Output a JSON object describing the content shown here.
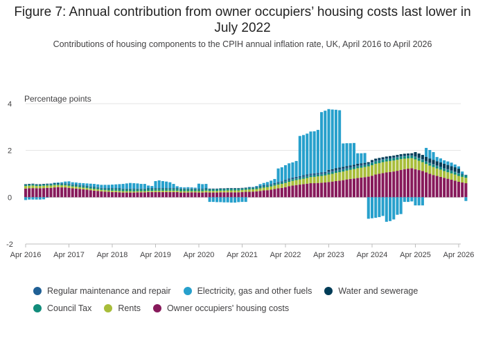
{
  "title": "Figure 7: Annual contribution from owner occupiers’ housing costs last lower in July 2022",
  "subtitle": "Contributions of housing components to the CPIH annual inflation rate, UK, April 2016 to April 2026",
  "chart_data": {
    "type": "bar",
    "stacked": true,
    "ylabel": "Percentage points",
    "ylim": [
      -2,
      4
    ],
    "yticks": [
      -2,
      0,
      2,
      4
    ],
    "xticks": [
      "Apr 2016",
      "Apr 2017",
      "Apr 2018",
      "Apr 2019",
      "Apr 2020",
      "Apr 2021",
      "Apr 2022",
      "Apr 2023",
      "Apr 2024",
      "Apr 2025",
      "Apr 2026"
    ],
    "grid": true,
    "legend_position": "bottom",
    "start_month": "2016-04",
    "series": [
      {
        "name": "Owner occupiers' housing costs",
        "color": "#871a5b",
        "values": [
          0.37,
          0.38,
          0.39,
          0.38,
          0.38,
          0.39,
          0.4,
          0.4,
          0.42,
          0.43,
          0.42,
          0.42,
          0.4,
          0.38,
          0.37,
          0.35,
          0.34,
          0.32,
          0.3,
          0.28,
          0.27,
          0.25,
          0.24,
          0.23,
          0.22,
          0.22,
          0.21,
          0.2,
          0.2,
          0.2,
          0.2,
          0.21,
          0.21,
          0.21,
          0.22,
          0.22,
          0.22,
          0.22,
          0.22,
          0.22,
          0.22,
          0.22,
          0.22,
          0.2,
          0.2,
          0.2,
          0.21,
          0.21,
          0.2,
          0.2,
          0.21,
          0.2,
          0.2,
          0.2,
          0.21,
          0.21,
          0.21,
          0.21,
          0.21,
          0.21,
          0.22,
          0.23,
          0.23,
          0.24,
          0.25,
          0.27,
          0.29,
          0.3,
          0.32,
          0.35,
          0.38,
          0.4,
          0.43,
          0.47,
          0.5,
          0.52,
          0.54,
          0.56,
          0.58,
          0.6,
          0.6,
          0.61,
          0.62,
          0.63,
          0.65,
          0.67,
          0.69,
          0.71,
          0.73,
          0.76,
          0.78,
          0.8,
          0.82,
          0.84,
          0.86,
          0.88,
          0.92,
          0.97,
          1.0,
          1.03,
          1.06,
          1.08,
          1.1,
          1.13,
          1.17,
          1.2,
          1.22,
          1.24,
          1.2,
          1.16,
          1.12,
          1.06,
          1.0,
          0.95,
          0.91,
          0.87,
          0.83,
          0.79,
          0.75,
          0.71,
          0.66,
          0.63,
          0.6
        ]
      },
      {
        "name": "Rents",
        "color": "#a8bd3a",
        "values": [
          0.11,
          0.11,
          0.11,
          0.1,
          0.1,
          0.1,
          0.1,
          0.1,
          0.1,
          0.09,
          0.09,
          0.09,
          0.09,
          0.08,
          0.08,
          0.08,
          0.07,
          0.07,
          0.07,
          0.07,
          0.07,
          0.06,
          0.06,
          0.06,
          0.06,
          0.06,
          0.06,
          0.06,
          0.06,
          0.06,
          0.05,
          0.05,
          0.05,
          0.05,
          0.05,
          0.05,
          0.06,
          0.06,
          0.06,
          0.06,
          0.06,
          0.06,
          0.06,
          0.06,
          0.06,
          0.06,
          0.05,
          0.05,
          0.06,
          0.06,
          0.07,
          0.07,
          0.07,
          0.07,
          0.07,
          0.07,
          0.08,
          0.08,
          0.08,
          0.08,
          0.09,
          0.09,
          0.1,
          0.1,
          0.1,
          0.11,
          0.12,
          0.13,
          0.14,
          0.15,
          0.16,
          0.17,
          0.18,
          0.19,
          0.2,
          0.21,
          0.22,
          0.23,
          0.24,
          0.26,
          0.27,
          0.28,
          0.29,
          0.3,
          0.32,
          0.33,
          0.35,
          0.36,
          0.37,
          0.38,
          0.39,
          0.4,
          0.42,
          0.42,
          0.43,
          0.44,
          0.45,
          0.46,
          0.46,
          0.47,
          0.47,
          0.47,
          0.47,
          0.47,
          0.46,
          0.45,
          0.44,
          0.43,
          0.42,
          0.4,
          0.38,
          0.36,
          0.35,
          0.34,
          0.32,
          0.31,
          0.29,
          0.28,
          0.27,
          0.26,
          0.25,
          0.24,
          0.23
        ]
      },
      {
        "name": "Council Tax",
        "color": "#118c7b",
        "values": [
          0.05,
          0.05,
          0.05,
          0.05,
          0.05,
          0.05,
          0.05,
          0.05,
          0.05,
          0.05,
          0.05,
          0.05,
          0.06,
          0.06,
          0.06,
          0.06,
          0.06,
          0.06,
          0.06,
          0.06,
          0.06,
          0.06,
          0.06,
          0.06,
          0.08,
          0.08,
          0.08,
          0.08,
          0.08,
          0.08,
          0.08,
          0.08,
          0.08,
          0.08,
          0.08,
          0.08,
          0.08,
          0.08,
          0.08,
          0.08,
          0.08,
          0.08,
          0.08,
          0.08,
          0.08,
          0.08,
          0.08,
          0.08,
          0.07,
          0.07,
          0.07,
          0.07,
          0.07,
          0.07,
          0.07,
          0.07,
          0.07,
          0.07,
          0.07,
          0.07,
          0.06,
          0.06,
          0.06,
          0.06,
          0.06,
          0.06,
          0.06,
          0.06,
          0.06,
          0.06,
          0.06,
          0.06,
          0.07,
          0.07,
          0.07,
          0.07,
          0.07,
          0.07,
          0.07,
          0.07,
          0.07,
          0.07,
          0.07,
          0.07,
          0.08,
          0.08,
          0.08,
          0.08,
          0.08,
          0.08,
          0.08,
          0.08,
          0.08,
          0.08,
          0.08,
          0.08,
          0.1,
          0.1,
          0.1,
          0.1,
          0.1,
          0.1,
          0.1,
          0.1,
          0.1,
          0.1,
          0.1,
          0.1,
          0.1,
          0.1,
          0.1,
          0.1,
          0.1,
          0.1,
          0.1,
          0.1,
          0.1,
          0.1,
          0.1,
          0.1,
          0.1,
          0.1,
          0.1
        ]
      },
      {
        "name": "Regular maintenance and repair",
        "color": "#206095",
        "values": [
          0.02,
          0.02,
          0.02,
          0.02,
          0.02,
          0.02,
          0.02,
          0.02,
          0.02,
          0.02,
          0.02,
          0.02,
          0.02,
          0.02,
          0.02,
          0.02,
          0.02,
          0.02,
          0.02,
          0.02,
          0.02,
          0.02,
          0.02,
          0.02,
          0.02,
          0.02,
          0.02,
          0.02,
          0.02,
          0.02,
          0.02,
          0.02,
          0.02,
          0.02,
          0.02,
          0.02,
          0.02,
          0.02,
          0.02,
          0.02,
          0.02,
          0.02,
          0.02,
          0.02,
          0.02,
          0.02,
          0.02,
          0.02,
          0.02,
          0.02,
          0.02,
          0.02,
          0.02,
          0.02,
          0.02,
          0.02,
          0.02,
          0.02,
          0.02,
          0.02,
          0.02,
          0.02,
          0.02,
          0.02,
          0.02,
          0.03,
          0.03,
          0.03,
          0.03,
          0.03,
          0.04,
          0.04,
          0.04,
          0.05,
          0.05,
          0.05,
          0.05,
          0.06,
          0.06,
          0.06,
          0.06,
          0.06,
          0.06,
          0.06,
          0.06,
          0.06,
          0.06,
          0.06,
          0.06,
          0.05,
          0.05,
          0.05,
          0.05,
          0.05,
          0.04,
          0.04,
          0.04,
          0.04,
          0.04,
          0.03,
          0.03,
          0.03,
          0.03,
          0.03,
          0.03,
          0.03,
          0.03,
          0.03,
          0.03,
          0.03,
          0.03,
          0.03,
          0.03,
          0.03,
          0.03,
          0.03,
          0.03,
          0.03,
          0.03,
          0.03,
          0.03,
          0.03,
          0.03
        ]
      },
      {
        "name": "Water and sewerage",
        "color": "#003c57",
        "values": [
          0.01,
          0.01,
          0.01,
          0.01,
          0.01,
          0.01,
          0.01,
          0.01,
          0.01,
          0.01,
          0.01,
          0.01,
          0.01,
          0.01,
          0.01,
          0.01,
          0.01,
          0.01,
          0.01,
          0.01,
          0.01,
          0.01,
          0.01,
          0.01,
          0.01,
          0.01,
          0.01,
          0.01,
          0.01,
          0.01,
          0.01,
          0.01,
          0.01,
          0.01,
          0.01,
          0.01,
          0.01,
          0.01,
          0.01,
          0.01,
          0.01,
          0.01,
          0.01,
          0.01,
          0.01,
          0.01,
          0.01,
          0.01,
          0.01,
          0.01,
          0.01,
          0.01,
          0.01,
          0.01,
          0.01,
          0.01,
          0.01,
          0.01,
          0.01,
          0.01,
          0.01,
          0.01,
          0.01,
          0.01,
          0.01,
          0.01,
          0.01,
          0.01,
          0.01,
          0.01,
          0.01,
          0.01,
          0.02,
          0.02,
          0.02,
          0.02,
          0.02,
          0.02,
          0.02,
          0.02,
          0.02,
          0.02,
          0.02,
          0.02,
          0.06,
          0.06,
          0.06,
          0.06,
          0.06,
          0.06,
          0.06,
          0.06,
          0.06,
          0.06,
          0.06,
          0.06,
          0.08,
          0.08,
          0.08,
          0.08,
          0.08,
          0.08,
          0.08,
          0.08,
          0.08,
          0.08,
          0.08,
          0.08,
          0.18,
          0.18,
          0.18,
          0.18,
          0.18,
          0.18,
          0.18,
          0.18,
          0.18,
          0.18,
          0.18,
          0.18,
          0.18
        ]
      },
      {
        "name": "Electricity, gas and other fuels",
        "color": "#27a0cc",
        "values": [
          -0.12,
          -0.1,
          -0.1,
          -0.1,
          -0.1,
          -0.09,
          -0.02,
          0.01,
          0.02,
          0.03,
          0.05,
          0.08,
          0.1,
          0.09,
          0.09,
          0.09,
          0.1,
          0.11,
          0.12,
          0.13,
          0.12,
          0.13,
          0.14,
          0.15,
          0.15,
          0.16,
          0.18,
          0.2,
          0.22,
          0.24,
          0.24,
          0.22,
          0.2,
          0.2,
          0.12,
          0.1,
          0.3,
          0.33,
          0.3,
          0.28,
          0.25,
          0.18,
          0.08,
          0.06,
          0.05,
          0.06,
          0.05,
          0.04,
          0.22,
          0.2,
          0.19,
          -0.2,
          -0.2,
          -0.21,
          -0.21,
          -0.22,
          -0.22,
          -0.23,
          -0.23,
          -0.21,
          -0.2,
          -0.2,
          0.02,
          0.01,
          0.04,
          0.08,
          0.1,
          0.12,
          0.15,
          0.18,
          0.58,
          0.6,
          0.63,
          0.65,
          0.65,
          0.68,
          1.72,
          1.72,
          1.75,
          1.8,
          1.8,
          1.84,
          2.58,
          2.62,
          2.6,
          2.55,
          2.5,
          2.45,
          1.0,
          0.98,
          0.95,
          0.93,
          0.45,
          0.43,
          0.42,
          -0.92,
          -0.9,
          -0.88,
          -0.85,
          -0.8,
          -1.05,
          -1.02,
          -0.95,
          -0.75,
          -0.72,
          -0.2,
          -0.2,
          -0.18,
          -0.35,
          -0.35,
          -0.35,
          0.38,
          0.36,
          0.33,
          0.18,
          0.17,
          0.15,
          0.15,
          0.15,
          0.12,
          0.1,
          0.1,
          -0.16
        ]
      }
    ]
  }
}
